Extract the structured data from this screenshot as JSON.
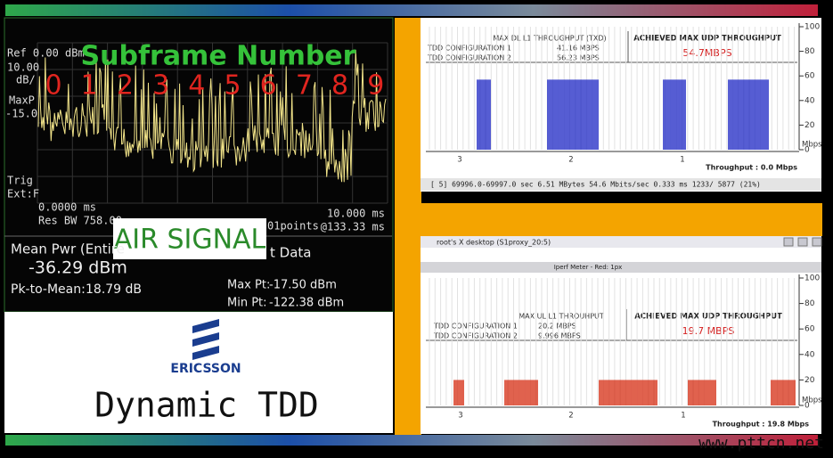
{
  "spectrum": {
    "ref": "Ref 0.00 dBm",
    "scale": "10.00",
    "scale_unit": "dB/",
    "maxp": "MaxP",
    "maxp_value": "-15.0",
    "title": "Subframe Number",
    "subframes": [
      "0",
      "1",
      "2",
      "3",
      "4",
      "5",
      "6",
      "7",
      "8",
      "9"
    ],
    "trig": "Trig",
    "trig_source": "Ext:F",
    "start_time": "0.0000 ms",
    "res_bw": "Res BW 758.00",
    "points": "01points",
    "span": "10.000 ms",
    "sweep": "@133.33 ms",
    "overlay": "AIR SIGNAL"
  },
  "measurements": {
    "mean_label": "Mean Pwr (Entire",
    "data_label": "t Data",
    "mean_value": "-36.29 dBm",
    "pk_label": "Pk-to-Mean:",
    "pk_value": "18.79 dB",
    "max_label": "Max Pt:",
    "max_value": "-17.50 dBm",
    "min_label": "Min Pt:",
    "min_value": "-122.38 dBm"
  },
  "brand": {
    "logo_text": "ERICSSON",
    "headline": "Dynamic TDD"
  },
  "downlink": {
    "table_header": "MAX DL L1 THROUGHPUT (TXD)",
    "rows": [
      [
        "TDD CONFIGURATION 1",
        "41.16 MBPS"
      ],
      [
        "TDD CONFIGURATION 2",
        "56.23 MBPS"
      ]
    ],
    "achieved_label": "ACHIEVED MAX UDP THROUGHPUT",
    "achieved_value": "54.7MBPS",
    "yticks": [
      0,
      20,
      40,
      60,
      80,
      100
    ],
    "unit": "Mbps",
    "xlabels": [
      "3",
      "2",
      "1"
    ],
    "throughput": "Throughput : 0.0 Mbps",
    "status": "[  5]  69996.0-69997.0 sec   6.51 MBytes  54.6 Mbits/sec   0.333 ms 1233/ 5877 (21%)"
  },
  "uplink": {
    "window_title": "root's X desktop (S1proxy_20:5)",
    "meter_title": "Iperf Meter  - Red: 1px",
    "table_header": "MAX UL L1 THROUHPUT",
    "rows": [
      [
        "TDD CONFIGURATION 1",
        "20.2 MBPS"
      ],
      [
        "TDD CONFIGURATION 2",
        "9.996 MBPS"
      ]
    ],
    "achieved_label": "ACHIEVED MAX UDP THROUGHPUT",
    "achieved_value": "19.7 MBPS",
    "yticks": [
      0,
      20,
      40,
      60,
      80,
      100
    ],
    "unit": "Mbps",
    "xlabels": [
      "3",
      "2",
      "1"
    ],
    "throughput": "Throughput : 19.8 Mbps"
  },
  "watermark": "www.pttcn.net"
}
